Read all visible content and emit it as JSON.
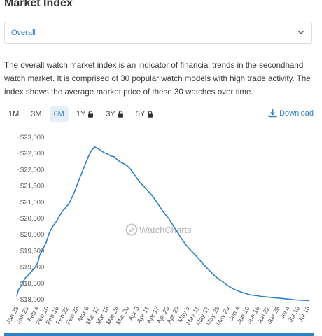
{
  "page": {
    "title": "Market Index"
  },
  "selector": {
    "value": "Overall"
  },
  "description": "The overall watch market index is an indicator of financial trends in the secondhand watch market. It is comprised of 30 popular watch models with high trade activity. The index shows the average market price of these 30 watches over time.",
  "time_ranges": [
    {
      "label": "1M",
      "locked": false,
      "active": false
    },
    {
      "label": "3M",
      "locked": false,
      "active": false
    },
    {
      "label": "6M",
      "locked": false,
      "active": true
    },
    {
      "label": "1Y",
      "locked": true,
      "active": false
    },
    {
      "label": "3Y",
      "locked": true,
      "active": false
    },
    {
      "label": "5Y",
      "locked": true,
      "active": false
    }
  ],
  "download": {
    "label": "Download"
  },
  "watermark": "WatchCharts",
  "colors": {
    "accent": "#2f80c7",
    "line": "#2f80c7",
    "active_bg": "#e6eef7"
  },
  "chart_data": {
    "type": "line",
    "grid": false,
    "ylim": [
      18000,
      23000
    ],
    "y_ticks": [
      "$18,000",
      "$18,500",
      "$19,000",
      "$19,500",
      "$20,000",
      "$20,500",
      "$21,000",
      "$21,500",
      "$22,000",
      "$22,500",
      "$23,000"
    ],
    "y_tick_values": [
      18000,
      18500,
      19000,
      19500,
      20000,
      20500,
      21000,
      21500,
      22000,
      22500,
      23000
    ],
    "x_ticks": [
      "Jan 23",
      "Jan 29",
      "Feb 4",
      "Feb 10",
      "Feb 16",
      "Feb 22",
      "Feb 28",
      "Mar 6",
      "Mar 12",
      "Mar 18",
      "Mar 24",
      "Mar 30",
      "Apr 5",
      "Apr 11",
      "Apr 17",
      "Apr 23",
      "Apr 29",
      "May 5",
      "May 11",
      "May 17",
      "May 23",
      "May 29",
      "Jun 4",
      "Jun 10",
      "Jun 16",
      "Jun 22",
      "Jun 28",
      "Jul 4",
      "Jul 10",
      "Jul 16"
    ],
    "x_tick_day": [
      0,
      6,
      12,
      18,
      24,
      30,
      36,
      42,
      48,
      54,
      60,
      66,
      72,
      78,
      84,
      90,
      96,
      102,
      108,
      114,
      120,
      126,
      132,
      138,
      144,
      150,
      156,
      162,
      168,
      174
    ],
    "series": [
      {
        "x": [
          0,
          1,
          3,
          5,
          6,
          8,
          10,
          12,
          13,
          14,
          16,
          18,
          20,
          22,
          24,
          26,
          28,
          30,
          32,
          34,
          36,
          38,
          40,
          42,
          44,
          46,
          48,
          50,
          52,
          54,
          56,
          58,
          60,
          62,
          64,
          66,
          68,
          70,
          72,
          74,
          76,
          78,
          80,
          82,
          84,
          86,
          88,
          90,
          92,
          94,
          96,
          98,
          100,
          102,
          104,
          106,
          108,
          110,
          112,
          114,
          116,
          118,
          120,
          122,
          124,
          126,
          128,
          130,
          132,
          134,
          136,
          138,
          140,
          142,
          144,
          146,
          148,
          150,
          152,
          154,
          156,
          158,
          160,
          162,
          164,
          166,
          168,
          170,
          172,
          174,
          176,
          178,
          180
        ],
        "y": [
          18100,
          18300,
          18450,
          18650,
          18700,
          18800,
          18920,
          19050,
          19150,
          19350,
          19550,
          19750,
          20050,
          20250,
          20380,
          20550,
          20720,
          20830,
          20950,
          21150,
          21380,
          21650,
          21900,
          22150,
          22400,
          22600,
          22700,
          22650,
          22580,
          22520,
          22480,
          22420,
          22400,
          22300,
          22230,
          22180,
          22120,
          22010,
          21880,
          21730,
          21590,
          21500,
          21380,
          21280,
          21150,
          21010,
          20860,
          20710,
          20590,
          20460,
          20300,
          20140,
          19980,
          19830,
          19690,
          19570,
          19470,
          19360,
          19250,
          19130,
          19020,
          18920,
          18820,
          18720,
          18640,
          18570,
          18500,
          18420,
          18360,
          18310,
          18270,
          18230,
          18200,
          18170,
          18140,
          18130,
          18120,
          18100,
          18090,
          18080,
          18070,
          18060,
          18050,
          18040,
          18030,
          18020,
          18010,
          18000,
          17990,
          17985,
          17980,
          17975,
          17970
        ]
      }
    ]
  }
}
